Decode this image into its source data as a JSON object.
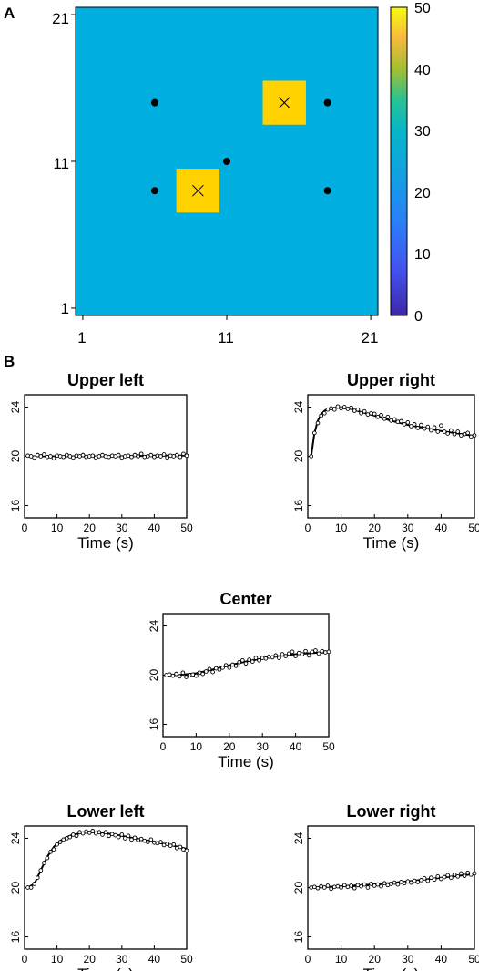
{
  "panels": {
    "a": "A",
    "b": "B"
  },
  "heatmap": {
    "x_ticks": [
      "1",
      "11",
      "21"
    ],
    "y_ticks": [
      "21",
      "11",
      "1"
    ],
    "colorbar_ticks": [
      "50",
      "40",
      "30",
      "20",
      "10",
      "0"
    ],
    "colors": {
      "background": "#00AEE0",
      "hotspot": "#FFD200",
      "marker": "#000000"
    }
  },
  "chart_data": [
    {
      "type": "heatmap",
      "xlim": [
        1,
        21
      ],
      "ylim": [
        1,
        21
      ],
      "background_value": 20,
      "hotspots": [
        {
          "center": [
            15,
            15
          ],
          "value": 50,
          "marker": "x"
        },
        {
          "center": [
            9,
            9
          ],
          "value": 50,
          "marker": "x"
        }
      ],
      "sensors": [
        [
          6,
          15
        ],
        [
          18,
          15
        ],
        [
          11,
          11
        ],
        [
          6,
          9
        ],
        [
          18,
          9
        ]
      ],
      "colorbar": {
        "min": 0,
        "max": 50,
        "ticks": [
          0,
          10,
          20,
          30,
          40,
          50
        ]
      }
    },
    {
      "type": "line",
      "title": "Upper left",
      "xlabel": "Time (s)",
      "xlim": [
        0,
        50
      ],
      "ylim": [
        15,
        25
      ],
      "x_ticks": [
        "0",
        "10",
        "20",
        "30",
        "40",
        "50"
      ],
      "y_ticks": [
        "16",
        "20",
        "24"
      ],
      "curve": [
        [
          1,
          20.0
        ],
        [
          10,
          20.0
        ],
        [
          20,
          20.0
        ],
        [
          30,
          20.0
        ],
        [
          40,
          20.05
        ],
        [
          50,
          20.05
        ]
      ],
      "observed": [
        [
          1,
          20.05
        ],
        [
          2,
          20.0
        ],
        [
          3,
          19.9
        ],
        [
          4,
          20.1
        ],
        [
          5,
          20.0
        ],
        [
          6,
          20.15
        ],
        [
          7,
          19.95
        ],
        [
          8,
          20.0
        ],
        [
          9,
          19.85
        ],
        [
          10,
          20.05
        ],
        [
          11,
          20.0
        ],
        [
          12,
          19.95
        ],
        [
          13,
          20.1
        ],
        [
          14,
          20.0
        ],
        [
          15,
          19.9
        ],
        [
          16,
          20.05
        ],
        [
          17,
          20.0
        ],
        [
          18,
          20.1
        ],
        [
          19,
          19.95
        ],
        [
          20,
          20.0
        ],
        [
          21,
          20.05
        ],
        [
          22,
          19.9
        ],
        [
          23,
          20.0
        ],
        [
          24,
          20.1
        ],
        [
          25,
          20.0
        ],
        [
          26,
          19.95
        ],
        [
          27,
          20.05
        ],
        [
          28,
          20.0
        ],
        [
          29,
          20.1
        ],
        [
          30,
          19.9
        ],
        [
          31,
          20.0
        ],
        [
          32,
          20.05
        ],
        [
          33,
          19.95
        ],
        [
          34,
          20.1
        ],
        [
          35,
          20.0
        ],
        [
          36,
          20.2
        ],
        [
          37,
          19.95
        ],
        [
          38,
          20.0
        ],
        [
          39,
          20.1
        ],
        [
          40,
          19.95
        ],
        [
          41,
          20.05
        ],
        [
          42,
          20.0
        ],
        [
          43,
          20.15
        ],
        [
          44,
          19.9
        ],
        [
          45,
          20.05
        ],
        [
          46,
          20.0
        ],
        [
          47,
          20.1
        ],
        [
          48,
          19.95
        ],
        [
          49,
          20.2
        ],
        [
          50,
          20.05
        ]
      ]
    },
    {
      "type": "line",
      "title": "Upper right",
      "xlabel": "Time (s)",
      "xlim": [
        0,
        50
      ],
      "ylim": [
        15,
        25
      ],
      "x_ticks": [
        "0",
        "10",
        "20",
        "30",
        "40",
        "50"
      ],
      "y_ticks": [
        "16",
        "20",
        "24"
      ],
      "curve": [
        [
          1,
          20.0
        ],
        [
          2,
          21.9
        ],
        [
          3,
          22.9
        ],
        [
          4,
          23.4
        ],
        [
          5,
          23.7
        ],
        [
          6,
          23.85
        ],
        [
          8,
          23.95
        ],
        [
          10,
          23.95
        ],
        [
          13,
          23.85
        ],
        [
          16,
          23.6
        ],
        [
          20,
          23.3
        ],
        [
          25,
          22.9
        ],
        [
          30,
          22.55
        ],
        [
          35,
          22.3
        ],
        [
          40,
          22.05
        ],
        [
          45,
          21.85
        ],
        [
          50,
          21.65
        ]
      ],
      "observed": [
        [
          1,
          20.0
        ],
        [
          2,
          21.9
        ],
        [
          3,
          22.7
        ],
        [
          4,
          23.3
        ],
        [
          5,
          23.5
        ],
        [
          6,
          23.8
        ],
        [
          7,
          23.9
        ],
        [
          8,
          23.8
        ],
        [
          9,
          24.05
        ],
        [
          10,
          23.9
        ],
        [
          11,
          24.0
        ],
        [
          12,
          23.85
        ],
        [
          13,
          23.95
        ],
        [
          14,
          23.7
        ],
        [
          15,
          23.8
        ],
        [
          16,
          23.5
        ],
        [
          17,
          23.65
        ],
        [
          18,
          23.4
        ],
        [
          19,
          23.5
        ],
        [
          20,
          23.45
        ],
        [
          21,
          23.2
        ],
        [
          22,
          23.35
        ],
        [
          23,
          23.05
        ],
        [
          24,
          23.2
        ],
        [
          25,
          22.9
        ],
        [
          26,
          23.0
        ],
        [
          27,
          22.8
        ],
        [
          28,
          22.85
        ],
        [
          29,
          22.6
        ],
        [
          30,
          22.75
        ],
        [
          31,
          22.45
        ],
        [
          32,
          22.6
        ],
        [
          33,
          22.3
        ],
        [
          34,
          22.55
        ],
        [
          35,
          22.25
        ],
        [
          36,
          22.4
        ],
        [
          37,
          22.1
        ],
        [
          38,
          22.35
        ],
        [
          39,
          22.0
        ],
        [
          40,
          22.5
        ],
        [
          41,
          22.0
        ],
        [
          42,
          21.85
        ],
        [
          43,
          22.1
        ],
        [
          44,
          21.8
        ],
        [
          45,
          22.0
        ],
        [
          46,
          21.7
        ],
        [
          47,
          21.8
        ],
        [
          48,
          21.9
        ],
        [
          49,
          21.6
        ],
        [
          50,
          21.7
        ]
      ]
    },
    {
      "type": "line",
      "title": "Center",
      "xlabel": "Time (s)",
      "xlim": [
        0,
        50
      ],
      "ylim": [
        15,
        25
      ],
      "x_ticks": [
        "0",
        "10",
        "20",
        "30",
        "40",
        "50"
      ],
      "y_ticks": [
        "16",
        "20",
        "24"
      ],
      "curve": [
        [
          1,
          20.0
        ],
        [
          5,
          20.02
        ],
        [
          10,
          20.15
        ],
        [
          15,
          20.45
        ],
        [
          20,
          20.8
        ],
        [
          25,
          21.1
        ],
        [
          30,
          21.35
        ],
        [
          35,
          21.55
        ],
        [
          40,
          21.7
        ],
        [
          45,
          21.8
        ],
        [
          50,
          21.85
        ]
      ],
      "observed": [
        [
          1,
          20.0
        ],
        [
          2,
          20.05
        ],
        [
          3,
          19.95
        ],
        [
          4,
          20.1
        ],
        [
          5,
          19.9
        ],
        [
          6,
          20.2
        ],
        [
          7,
          19.85
        ],
        [
          8,
          20.0
        ],
        [
          9,
          20.05
        ],
        [
          10,
          19.95
        ],
        [
          11,
          20.2
        ],
        [
          12,
          20.1
        ],
        [
          13,
          20.3
        ],
        [
          14,
          20.5
        ],
        [
          15,
          20.25
        ],
        [
          16,
          20.55
        ],
        [
          17,
          20.45
        ],
        [
          18,
          20.6
        ],
        [
          19,
          20.8
        ],
        [
          20,
          20.6
        ],
        [
          21,
          20.85
        ],
        [
          22,
          20.75
        ],
        [
          23,
          21.05
        ],
        [
          24,
          21.2
        ],
        [
          25,
          20.95
        ],
        [
          26,
          21.25
        ],
        [
          27,
          21.1
        ],
        [
          28,
          21.4
        ],
        [
          29,
          21.2
        ],
        [
          30,
          21.4
        ],
        [
          31,
          21.35
        ],
        [
          32,
          21.5
        ],
        [
          33,
          21.45
        ],
        [
          34,
          21.6
        ],
        [
          35,
          21.4
        ],
        [
          36,
          21.7
        ],
        [
          37,
          21.55
        ],
        [
          38,
          21.75
        ],
        [
          39,
          21.9
        ],
        [
          40,
          21.55
        ],
        [
          41,
          21.8
        ],
        [
          42,
          21.7
        ],
        [
          43,
          21.95
        ],
        [
          44,
          21.6
        ],
        [
          45,
          21.9
        ],
        [
          46,
          22.0
        ],
        [
          47,
          21.75
        ],
        [
          48,
          21.95
        ],
        [
          49,
          21.85
        ],
        [
          50,
          21.9
        ]
      ]
    },
    {
      "type": "line",
      "title": "Lower left",
      "xlabel": "Time (s)",
      "xlim": [
        0,
        50
      ],
      "ylim": [
        15,
        25
      ],
      "x_ticks": [
        "0",
        "10",
        "20",
        "30",
        "40",
        "50"
      ],
      "y_ticks": [
        "16",
        "20",
        "24"
      ],
      "curve": [
        [
          1,
          20.0
        ],
        [
          3,
          20.3
        ],
        [
          5,
          21.4
        ],
        [
          7,
          22.5
        ],
        [
          9,
          23.3
        ],
        [
          11,
          23.8
        ],
        [
          13,
          24.1
        ],
        [
          15,
          24.3
        ],
        [
          18,
          24.45
        ],
        [
          21,
          24.5
        ],
        [
          24,
          24.45
        ],
        [
          28,
          24.3
        ],
        [
          32,
          24.1
        ],
        [
          36,
          23.9
        ],
        [
          40,
          23.7
        ],
        [
          45,
          23.45
        ],
        [
          50,
          23.15
        ]
      ],
      "observed": [
        [
          1,
          20.0
        ],
        [
          2,
          20.0
        ],
        [
          3,
          20.3
        ],
        [
          4,
          20.8
        ],
        [
          5,
          21.4
        ],
        [
          6,
          22.0
        ],
        [
          7,
          22.4
        ],
        [
          8,
          22.9
        ],
        [
          9,
          23.1
        ],
        [
          10,
          23.5
        ],
        [
          11,
          23.7
        ],
        [
          12,
          23.9
        ],
        [
          13,
          24.0
        ],
        [
          14,
          24.1
        ],
        [
          15,
          24.3
        ],
        [
          16,
          24.2
        ],
        [
          17,
          24.5
        ],
        [
          18,
          24.4
        ],
        [
          19,
          24.55
        ],
        [
          20,
          24.45
        ],
        [
          21,
          24.6
        ],
        [
          22,
          24.4
        ],
        [
          23,
          24.5
        ],
        [
          24,
          24.3
        ],
        [
          25,
          24.5
        ],
        [
          26,
          24.2
        ],
        [
          27,
          24.35
        ],
        [
          28,
          24.25
        ],
        [
          29,
          24.1
        ],
        [
          30,
          24.3
        ],
        [
          31,
          24.0
        ],
        [
          32,
          24.2
        ],
        [
          33,
          23.9
        ],
        [
          34,
          24.05
        ],
        [
          35,
          23.85
        ],
        [
          36,
          23.95
        ],
        [
          37,
          23.8
        ],
        [
          38,
          23.7
        ],
        [
          39,
          23.9
        ],
        [
          40,
          23.65
        ],
        [
          41,
          23.6
        ],
        [
          42,
          23.7
        ],
        [
          43,
          23.45
        ],
        [
          44,
          23.55
        ],
        [
          45,
          23.4
        ],
        [
          46,
          23.5
        ],
        [
          47,
          23.2
        ],
        [
          48,
          23.3
        ],
        [
          49,
          23.1
        ],
        [
          50,
          23.0
        ]
      ]
    },
    {
      "type": "line",
      "title": "Lower right",
      "xlabel": "Time (s)",
      "xlim": [
        0,
        50
      ],
      "ylim": [
        15,
        25
      ],
      "x_ticks": [
        "0",
        "10",
        "20",
        "30",
        "40",
        "50"
      ],
      "y_ticks": [
        "16",
        "20",
        "24"
      ],
      "curve": [
        [
          1,
          20.0
        ],
        [
          10,
          20.1
        ],
        [
          20,
          20.25
        ],
        [
          30,
          20.5
        ],
        [
          40,
          20.8
        ],
        [
          50,
          21.1
        ]
      ],
      "observed": [
        [
          1,
          20.0
        ],
        [
          2,
          20.05
        ],
        [
          3,
          19.95
        ],
        [
          4,
          20.1
        ],
        [
          5,
          20.0
        ],
        [
          6,
          20.15
        ],
        [
          7,
          19.9
        ],
        [
          8,
          20.05
        ],
        [
          9,
          20.1
        ],
        [
          10,
          20.0
        ],
        [
          11,
          20.2
        ],
        [
          12,
          20.05
        ],
        [
          13,
          20.15
        ],
        [
          14,
          19.95
        ],
        [
          15,
          20.2
        ],
        [
          16,
          20.1
        ],
        [
          17,
          20.25
        ],
        [
          18,
          20.0
        ],
        [
          19,
          20.3
        ],
        [
          20,
          20.15
        ],
        [
          21,
          20.25
        ],
        [
          22,
          20.1
        ],
        [
          23,
          20.35
        ],
        [
          24,
          20.2
        ],
        [
          25,
          20.3
        ],
        [
          26,
          20.4
        ],
        [
          27,
          20.25
        ],
        [
          28,
          20.45
        ],
        [
          29,
          20.35
        ],
        [
          30,
          20.5
        ],
        [
          31,
          20.4
        ],
        [
          32,
          20.55
        ],
        [
          33,
          20.45
        ],
        [
          34,
          20.6
        ],
        [
          35,
          20.75
        ],
        [
          36,
          20.55
        ],
        [
          37,
          20.8
        ],
        [
          38,
          20.65
        ],
        [
          39,
          20.9
        ],
        [
          40,
          20.7
        ],
        [
          41,
          20.85
        ],
        [
          42,
          21.0
        ],
        [
          43,
          20.8
        ],
        [
          44,
          21.05
        ],
        [
          45,
          20.9
        ],
        [
          46,
          21.15
        ],
        [
          47,
          20.95
        ],
        [
          48,
          21.2
        ],
        [
          49,
          21.05
        ],
        [
          50,
          21.15
        ]
      ]
    }
  ]
}
